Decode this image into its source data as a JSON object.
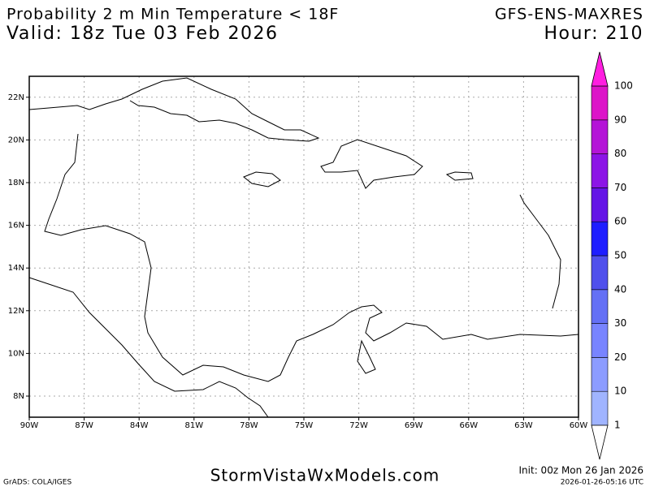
{
  "header": {
    "title": "Probability 2 m Min Temperature < 18F",
    "valid": "Valid: 18z Tue 03 Feb 2026",
    "model": "GFS-ENS-MAXRES",
    "hour": "Hour: 210"
  },
  "map": {
    "lon_labels": [
      "90W",
      "87W",
      "84W",
      "81W",
      "78W",
      "75W",
      "72W",
      "69W",
      "66W",
      "63W",
      "60W"
    ],
    "lat_labels": [
      "8N",
      "10N",
      "12N",
      "14N",
      "16N",
      "18N",
      "20N",
      "22N"
    ]
  },
  "colorbar": {
    "levels": [
      1,
      10,
      20,
      30,
      40,
      50,
      60,
      70,
      80,
      90,
      100
    ],
    "colors": [
      "#a0b4ff",
      "#8c9cff",
      "#7884ff",
      "#6470f5",
      "#5050ec",
      "#1e1eff",
      "#6414e6",
      "#8c14e6",
      "#b414d7",
      "#dc14c8"
    ],
    "over_color": "#ff1ee0"
  },
  "footer": {
    "credit": "GrADS: COLA/IGES",
    "site": "StormVistaWxModels.com",
    "init": "Init: 00z Mon 26 Jan 2026",
    "stamp": "2026-01-26-05:16 UTC"
  }
}
